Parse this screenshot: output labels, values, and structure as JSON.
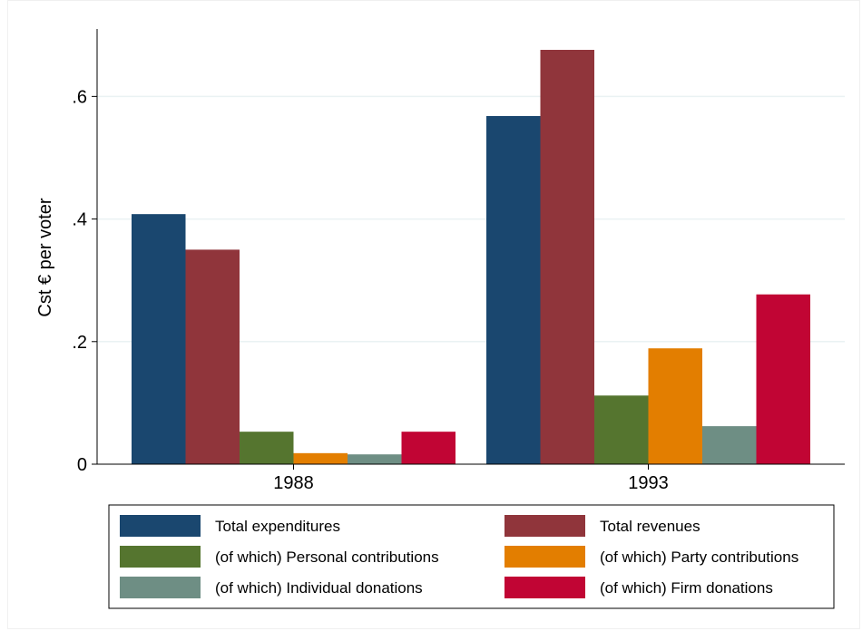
{
  "chart_data": {
    "type": "bar",
    "title": "",
    "xlabel": "",
    "ylabel": "Cst € per voter",
    "ylim": [
      0,
      0.71
    ],
    "yticks": [
      {
        "value": 0,
        "label": "0"
      },
      {
        "value": 0.2,
        "label": ".2"
      },
      {
        "value": 0.4,
        "label": ".4"
      },
      {
        "value": 0.6,
        "label": ".6"
      }
    ],
    "grid": true,
    "legend_position": "bottom",
    "categories": [
      "1988",
      "1993"
    ],
    "series": [
      {
        "name": "Total expenditures",
        "color": "#1a476f",
        "values": [
          0.408,
          0.568
        ]
      },
      {
        "name": "Total revenues",
        "color": "#90353b",
        "values": [
          0.35,
          0.676
        ]
      },
      {
        "name": "(of which) Personal contributions",
        "color": "#55752f",
        "values": [
          0.053,
          0.112
        ]
      },
      {
        "name": "(of which) Party contributions",
        "color": "#e37e00",
        "values": [
          0.018,
          0.189
        ]
      },
      {
        "name": "(of which) Individual donations",
        "color": "#6e8e84",
        "values": [
          0.016,
          0.062
        ]
      },
      {
        "name": "(of which) Firm donations",
        "color": "#c10534",
        "values": [
          0.053,
          0.277
        ]
      }
    ]
  }
}
